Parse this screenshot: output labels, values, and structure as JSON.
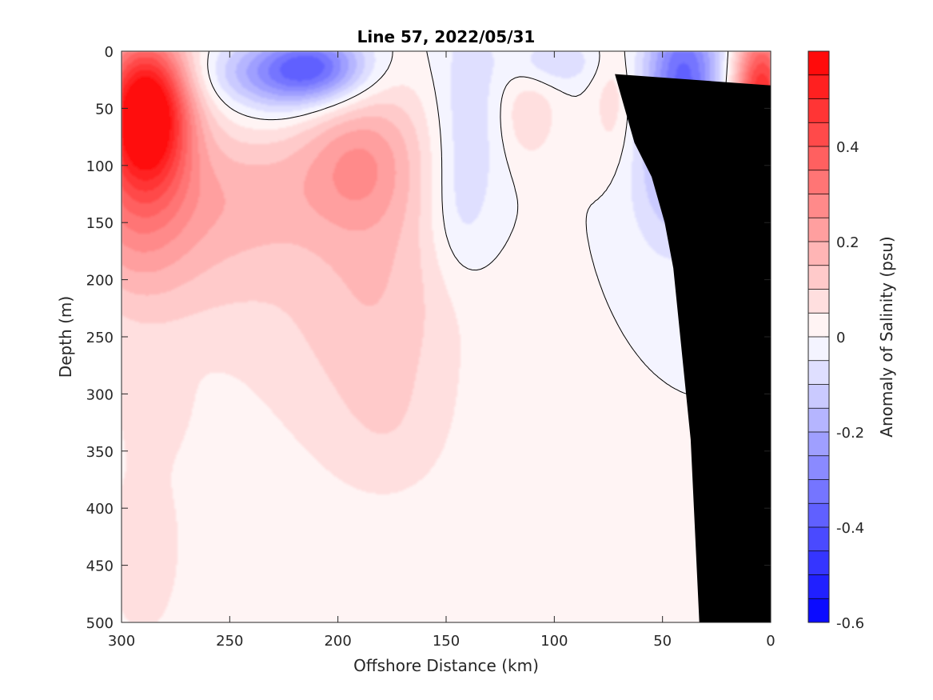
{
  "chart_data": {
    "type": "heatmap",
    "title": "Line 57, 2022/05/31",
    "xlabel": "Offshore Distance (km)",
    "ylabel": "Depth (m)",
    "colorbar_label": "Anomaly of Salinity (psu)",
    "xlim": [
      300,
      0
    ],
    "ylim": [
      500,
      0
    ],
    "xticks": [
      "300",
      "250",
      "200",
      "150",
      "100",
      "50",
      "0"
    ],
    "yticks": [
      "0",
      "50",
      "100",
      "150",
      "200",
      "250",
      "300",
      "350",
      "400",
      "450",
      "500"
    ],
    "colorbar_range": [
      -0.6,
      0.6
    ],
    "colorbar_ticks": [
      "-0.6",
      "-0.4",
      "-0.2",
      "0",
      "0.2",
      "0.4"
    ],
    "contour_levels": 24,
    "contour_line_level": 0,
    "bathymetry_color": "#000000",
    "bathymetry": {
      "x": [
        33,
        37,
        45,
        49,
        55,
        63,
        72
      ],
      "depth": [
        500,
        340,
        190,
        150,
        110,
        80,
        20
      ]
    },
    "features": [
      {
        "name": "offshore high-salinity core",
        "x": 287,
        "depth": 50,
        "value": 0.55
      },
      {
        "name": "surface low-salinity core",
        "x": 212,
        "depth": 15,
        "value": -0.35
      },
      {
        "name": "subsurface positive",
        "x": 190,
        "depth": 100,
        "value": 0.22
      },
      {
        "name": "midshelf negative",
        "x": 140,
        "depth": 60,
        "value": -0.1
      },
      {
        "name": "near-surface positive",
        "x": 112,
        "depth": 55,
        "value": 0.08
      },
      {
        "name": "nearshore low-salinity core",
        "x": 40,
        "depth": 15,
        "value": -0.32
      },
      {
        "name": "coastal high-salinity",
        "x": 4,
        "depth": 45,
        "value": 0.48
      },
      {
        "name": "deep offshore positive",
        "x": 285,
        "depth": 430,
        "value": 0.06
      }
    ]
  }
}
